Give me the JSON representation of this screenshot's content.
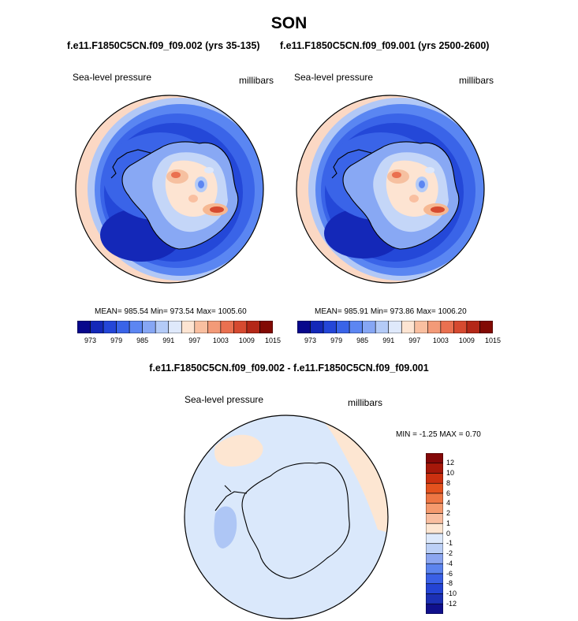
{
  "title": "SON",
  "case_titles": {
    "left": "f.e11.F1850C5CN.f09_f09.002 (yrs 35-135)",
    "right": "f.e11.F1850C5CN.f09_f09.001 (yrs 2500-2600)"
  },
  "diff_title": "f.e11.F1850C5CN.f09_f09.002 - f.e11.F1850C5CN.f09_f09.001",
  "panels": [
    {
      "id": "left",
      "field": "Sea-level pressure",
      "units": "millibars",
      "stats": "MEAN= 985.54  Min= 973.54  Max= 1005.60"
    },
    {
      "id": "right",
      "field": "Sea-level pressure",
      "units": "millibars",
      "stats": "MEAN= 985.91  Min= 973.86  Max= 1006.20"
    },
    {
      "id": "diff",
      "field": "Sea-level pressure",
      "units": "millibars",
      "stats": "MIN =  -1.25 MAX =   0.70"
    }
  ],
  "colorbar_top": {
    "colors": [
      "#08088c",
      "#1428b8",
      "#2446d8",
      "#3a64e8",
      "#5c86f2",
      "#86a6f4",
      "#b4cbf7",
      "#dfe9fb",
      "#fde4d2",
      "#f9bfa0",
      "#f39a78",
      "#ea7050",
      "#d64a30",
      "#b42818",
      "#820a04"
    ],
    "labels": [
      "973",
      "979",
      "985",
      "991",
      "997",
      "1003",
      "1009",
      "1015"
    ]
  },
  "colorbar_diff": {
    "colors": [
      "#10108c",
      "#1c30b4",
      "#2444d4",
      "#3a60e6",
      "#5c84ee",
      "#8ca6f0",
      "#bcd0f6",
      "#dde9fb",
      "#fde6d2",
      "#f9bea0",
      "#f59a6e",
      "#ee7644",
      "#e4521e",
      "#cc3010",
      "#a6180a",
      "#840808"
    ],
    "labels": [
      "-12",
      "-10",
      "-8",
      "-6",
      "-4",
      "-2",
      "-1",
      "0",
      "1",
      "2",
      "4",
      "6",
      "8",
      "10",
      "12"
    ]
  }
}
